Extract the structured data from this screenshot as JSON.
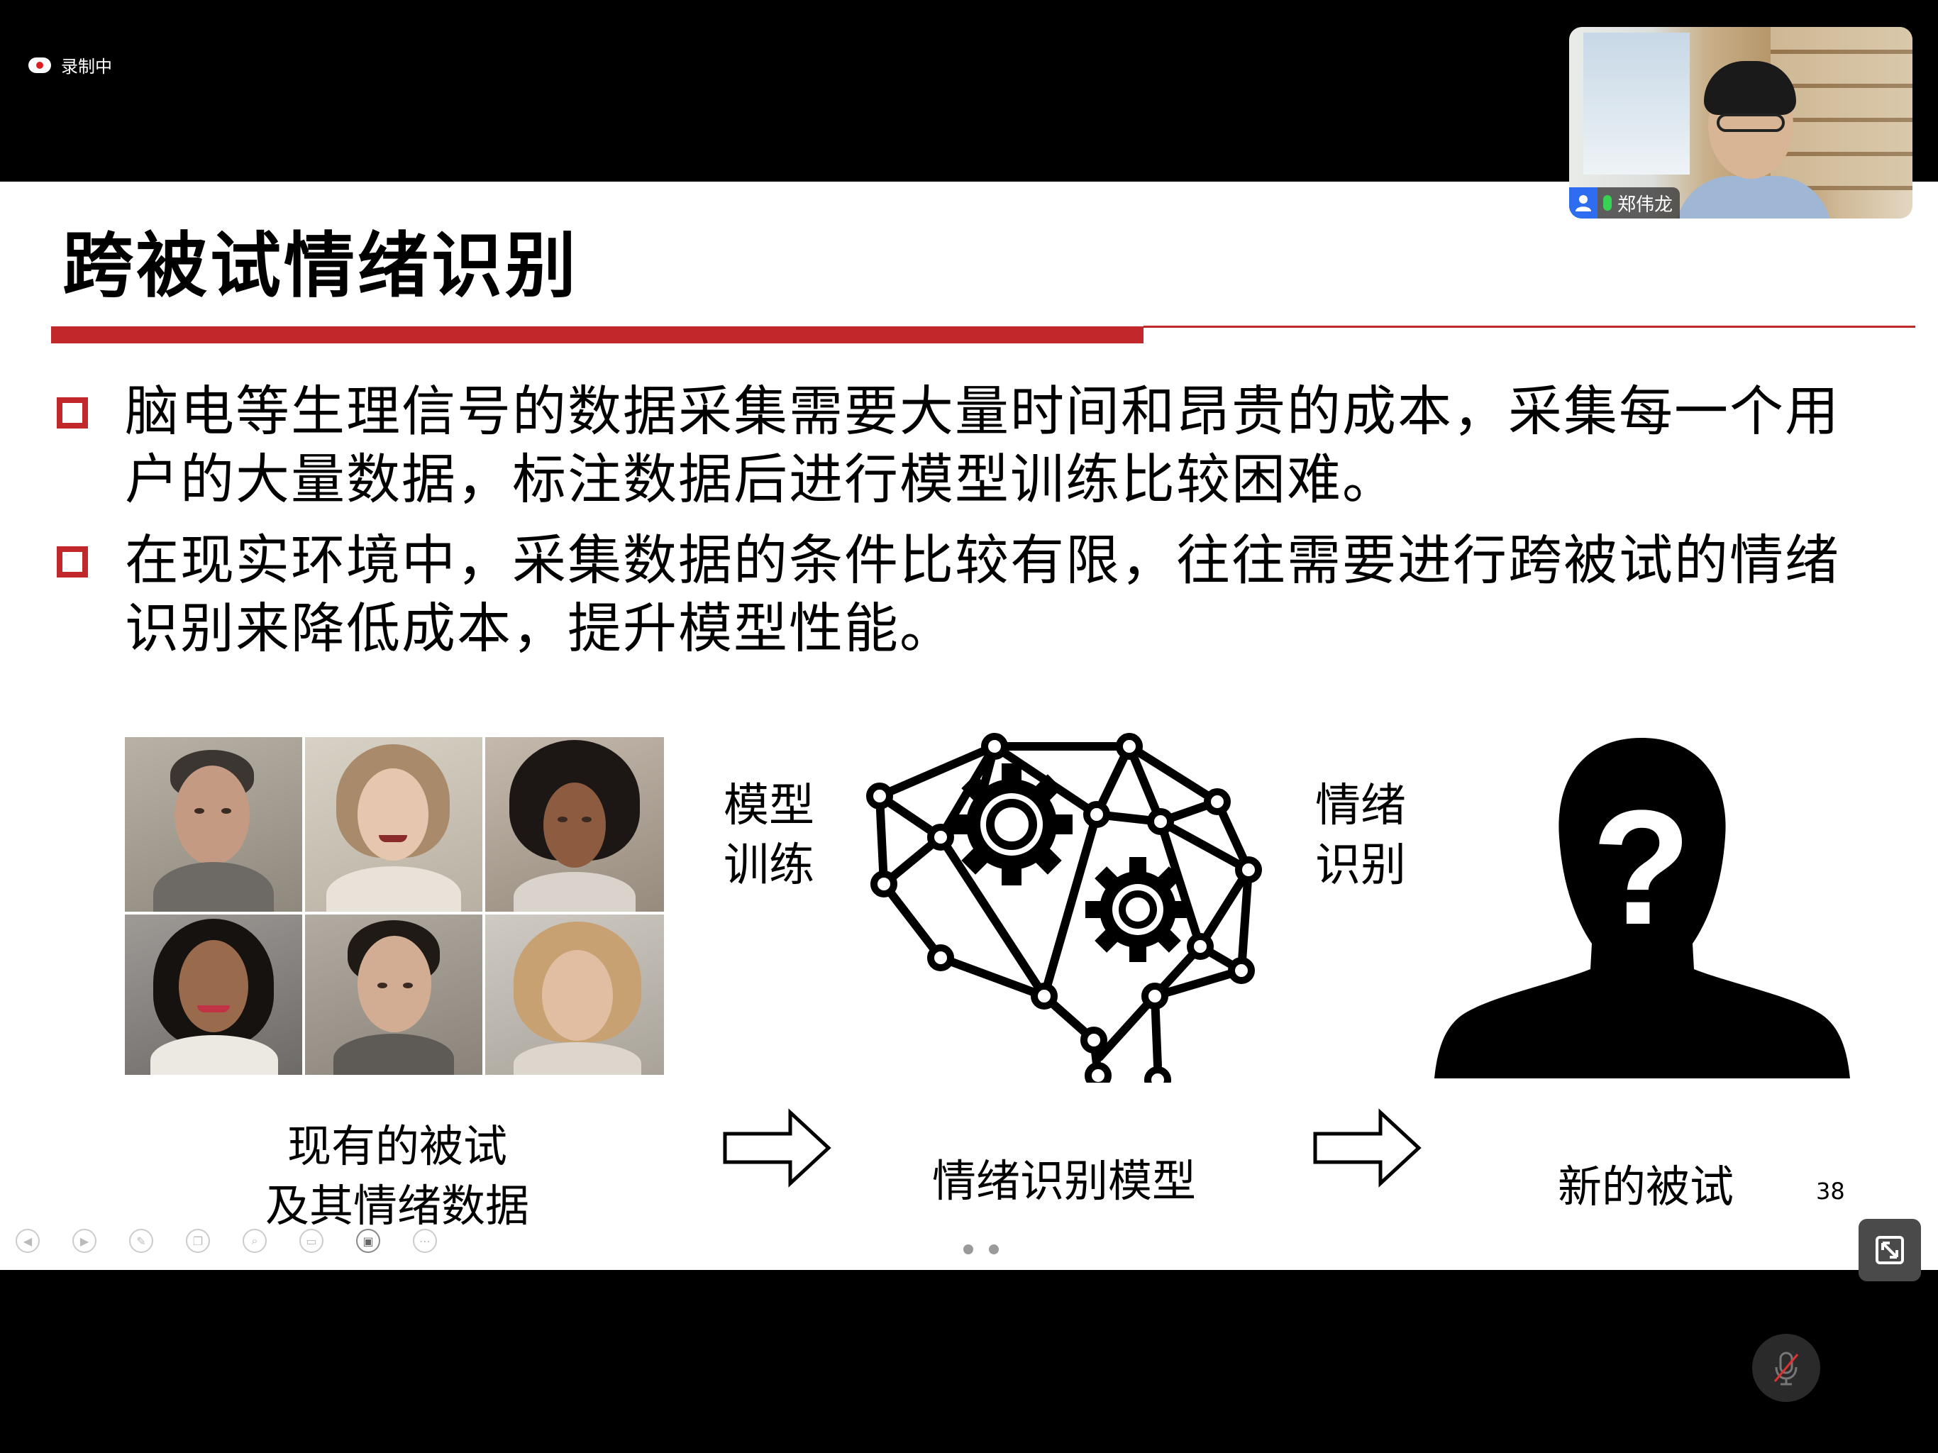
{
  "recording": {
    "label": "录制中"
  },
  "slide": {
    "title": "跨被试情绪识别",
    "bullets": [
      {
        "text": "脑电等生理信号的数据采集需要大量时间和昂贵的成本，采集每一个用户的大量数据，标注数据后进行模型训练比较困难。"
      },
      {
        "text": "在现实环境中，采集数据的条件比较有限，往往需要进行跨被试的情绪识别来降低成本，提升模型性能。"
      }
    ],
    "diagram": {
      "arrow_train": {
        "line1": "模型",
        "line2": "训练"
      },
      "arrow_recognize": {
        "line1": "情绪",
        "line2": "识别"
      },
      "caption_existing": {
        "line1": "现有的被试",
        "line2": "及其情绪数据"
      },
      "caption_model": "情绪识别模型",
      "caption_new": "新的被试",
      "question_mark": "?"
    },
    "page_number": "38",
    "accent_color": "#c0282b"
  },
  "participant": {
    "name": "郑伟龙"
  },
  "toolbar": {
    "icons": [
      "prev-icon",
      "next-icon",
      "pen-icon",
      "copy-icon",
      "zoom-icon",
      "screen-icon",
      "camera-icon",
      "more-icon"
    ]
  }
}
